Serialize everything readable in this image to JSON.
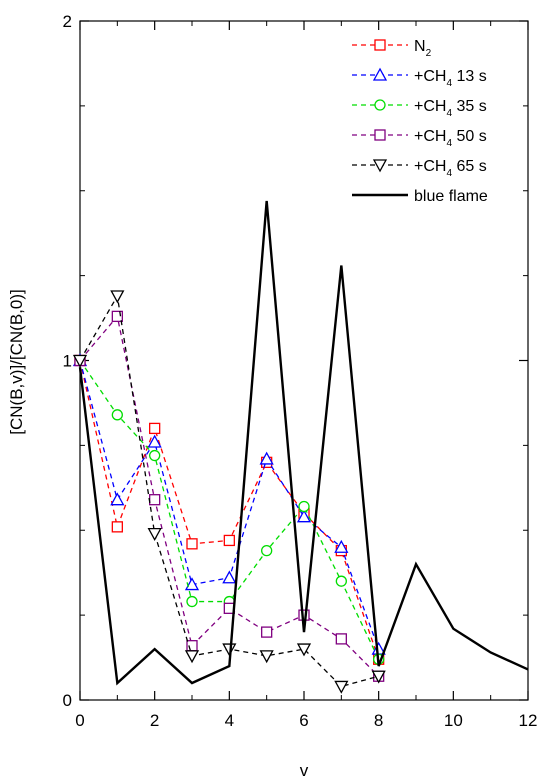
{
  "chart_data": {
    "type": "line",
    "title": "",
    "xlabel": "v",
    "ylabel": "[CN(B,v)]/[CN(B,0)]",
    "xlim": [
      0,
      12
    ],
    "ylim": [
      0,
      2
    ],
    "x_ticks": [
      0,
      2,
      4,
      6,
      8,
      10,
      12
    ],
    "y_ticks": [
      0,
      1,
      2
    ],
    "grid": false,
    "legend_position": "top-right",
    "series": [
      {
        "name": "N",
        "subscript": "2",
        "color": "#ff0000",
        "marker": "square",
        "line": "dashed",
        "x": [
          0,
          1,
          2,
          3,
          4,
          5,
          6,
          7,
          8
        ],
        "y": [
          1.0,
          0.51,
          0.8,
          0.46,
          0.47,
          0.7,
          0.55,
          0.44,
          0.12
        ]
      },
      {
        "name": "+CH",
        "subscript": "4",
        "suffix": " 13 s",
        "color": "#0000ff",
        "marker": "triangle-up",
        "line": "dashed",
        "x": [
          0,
          1,
          2,
          3,
          4,
          5,
          6,
          7,
          8
        ],
        "y": [
          1.0,
          0.59,
          0.76,
          0.34,
          0.36,
          0.71,
          0.54,
          0.45,
          0.15
        ]
      },
      {
        "name": "+CH",
        "subscript": "4",
        "suffix": " 35 s",
        "color": "#00dd00",
        "marker": "circle",
        "line": "dashed",
        "x": [
          0,
          1,
          2,
          3,
          4,
          5,
          6,
          7,
          8
        ],
        "y": [
          1.0,
          0.84,
          0.72,
          0.29,
          0.29,
          0.44,
          0.57,
          0.35,
          0.12
        ]
      },
      {
        "name": "+CH",
        "subscript": "4",
        "suffix": " 50 s",
        "color": "#800080",
        "marker": "square",
        "line": "dashed",
        "x": [
          0,
          1,
          2,
          3,
          4,
          5,
          6,
          7,
          8
        ],
        "y": [
          1.0,
          1.13,
          0.59,
          0.16,
          0.27,
          0.2,
          0.25,
          0.18,
          0.07
        ]
      },
      {
        "name": "+CH",
        "subscript": "4",
        "suffix": " 65 s",
        "color": "#000000",
        "marker": "triangle-down",
        "line": "dashed",
        "x": [
          0,
          1,
          2,
          3,
          4,
          5,
          6,
          7,
          8
        ],
        "y": [
          1.0,
          1.19,
          0.49,
          0.13,
          0.15,
          0.13,
          0.15,
          0.04,
          0.07
        ]
      },
      {
        "name": "blue flame",
        "color": "#000000",
        "marker": "none",
        "line": "solid",
        "x": [
          0,
          1,
          2,
          3,
          4,
          5,
          6,
          7,
          8,
          9,
          10,
          11,
          12
        ],
        "y": [
          0.98,
          0.05,
          0.15,
          0.05,
          0.1,
          1.47,
          0.2,
          1.28,
          0.1,
          0.4,
          0.21,
          0.14,
          0.09
        ]
      }
    ]
  }
}
